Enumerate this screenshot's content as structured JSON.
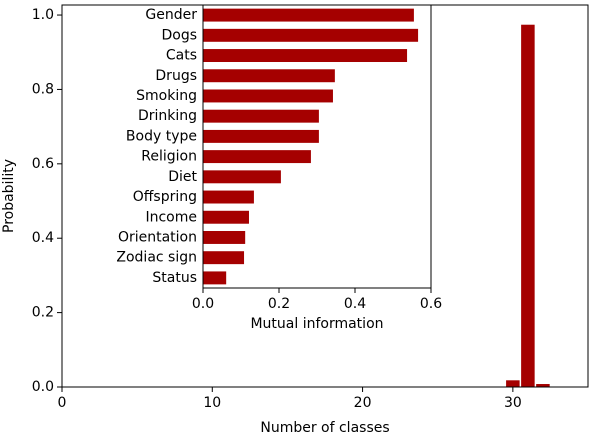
{
  "chart_data": [
    {
      "type": "bar",
      "xlabel": "Number of classes",
      "ylabel": "Probability",
      "x": [
        30,
        31,
        32
      ],
      "values": [
        0.018,
        0.974,
        0.008
      ],
      "color": "#a50000",
      "xlim": [
        0,
        35
      ],
      "xticks": [
        0,
        10,
        20,
        30
      ],
      "ylim": [
        0,
        1.027
      ],
      "yticks": [
        {
          "value": 0,
          "label": "0.0"
        },
        {
          "value": 0.2,
          "label": "0.2"
        },
        {
          "value": 0.4,
          "label": "0.4"
        },
        {
          "value": 0.6,
          "label": "0.6"
        },
        {
          "value": 0.8,
          "label": "0.8"
        },
        {
          "value": 1,
          "label": "1.0"
        }
      ]
    },
    {
      "type": "hbar",
      "xlabel": "Mutual information",
      "categories": [
        "Gender",
        "Dogs",
        "Cats",
        "Drugs",
        "Smoking",
        "Drinking",
        "Body type",
        "Religion",
        "Diet",
        "Offspring",
        "Income",
        "Orientation",
        "Zodiac sign",
        "Status"
      ],
      "values": [
        0.555,
        0.566,
        0.537,
        0.347,
        0.342,
        0.305,
        0.305,
        0.284,
        0.205,
        0.134,
        0.121,
        0.111,
        0.108,
        0.061
      ],
      "color": "#a50000",
      "xlim": [
        0,
        0.6
      ],
      "xticks": [
        {
          "value": 0,
          "label": "0.0"
        },
        {
          "value": 0.2,
          "label": "0.2"
        },
        {
          "value": 0.4,
          "label": "0.4"
        },
        {
          "value": 0.6,
          "label": "0.6"
        }
      ]
    }
  ]
}
